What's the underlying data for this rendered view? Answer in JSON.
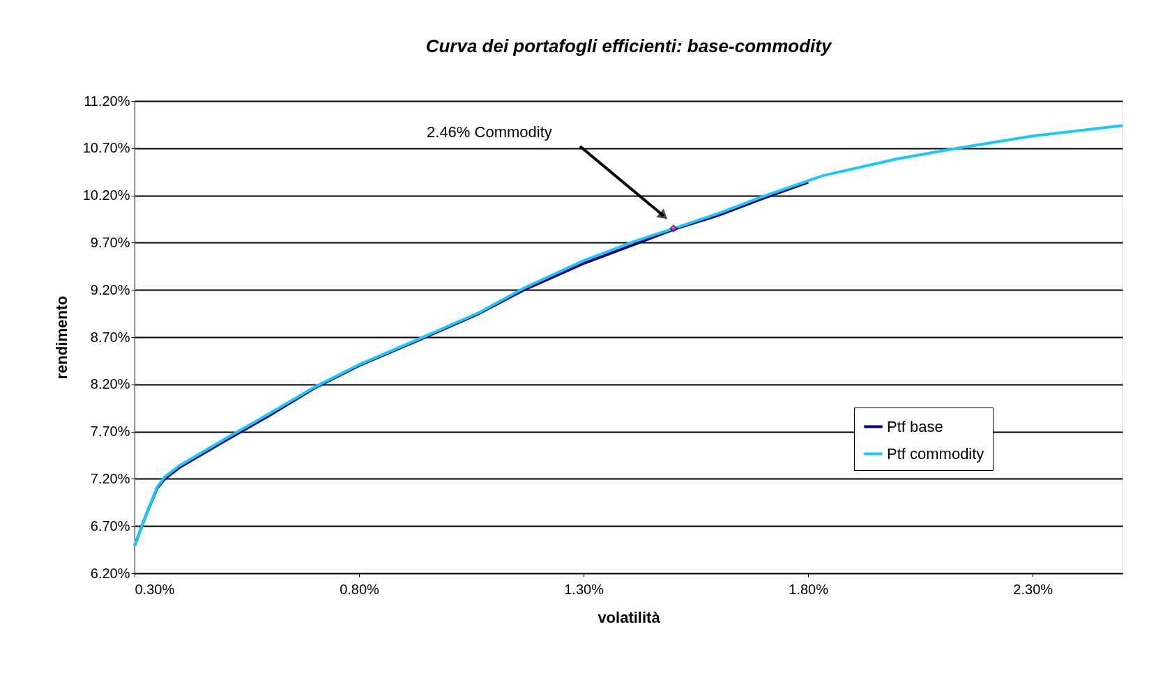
{
  "chart_data": {
    "type": "line",
    "title": "Curva dei portafogli efficienti: base-commodity",
    "xlabel": "volatilità",
    "ylabel": "rendimento",
    "xlim": [
      0.3,
      2.5
    ],
    "ylim": [
      6.2,
      11.2
    ],
    "xticks": [
      {
        "value": 0.3,
        "label": "0.30%"
      },
      {
        "value": 0.8,
        "label": "0.80%"
      },
      {
        "value": 1.3,
        "label": "1.30%"
      },
      {
        "value": 1.8,
        "label": "1.80%"
      },
      {
        "value": 2.3,
        "label": "2.30%"
      }
    ],
    "yticks": [
      {
        "value": 6.2,
        "label": "6.20%"
      },
      {
        "value": 6.7,
        "label": "6.70%"
      },
      {
        "value": 7.2,
        "label": "7.20%"
      },
      {
        "value": 7.7,
        "label": "7.70%"
      },
      {
        "value": 8.2,
        "label": "8.20%"
      },
      {
        "value": 8.7,
        "label": "8.70%"
      },
      {
        "value": 9.2,
        "label": "9.20%"
      },
      {
        "value": 9.7,
        "label": "9.70%"
      },
      {
        "value": 10.2,
        "label": "10.20%"
      },
      {
        "value": 10.7,
        "label": "10.70%"
      },
      {
        "value": 11.2,
        "label": "11.20%"
      }
    ],
    "grid": "y",
    "legend": "bottom right",
    "line_style": "solid",
    "series": [
      {
        "name": "Ptf base",
        "color": "#000080",
        "x": [
          0.3,
          0.325,
          0.35,
          0.367,
          0.4,
          0.5,
          0.6,
          0.7,
          0.8,
          0.933,
          1.067,
          1.167,
          1.3,
          1.417,
          1.5,
          1.6,
          1.7,
          1.8
        ],
        "values": [
          6.49,
          6.81,
          7.1,
          7.2,
          7.32,
          7.6,
          7.87,
          8.16,
          8.4,
          8.67,
          8.95,
          9.2,
          9.48,
          9.69,
          9.84,
          9.99,
          10.17,
          10.34
        ]
      },
      {
        "name": "Ptf commodity",
        "color": "#1ec8f5",
        "x": [
          0.3,
          0.325,
          0.35,
          0.367,
          0.4,
          0.5,
          0.6,
          0.7,
          0.8,
          0.933,
          1.067,
          1.167,
          1.3,
          1.417,
          1.5,
          1.6,
          1.7,
          1.833,
          2.0,
          2.133,
          2.3,
          2.5
        ],
        "values": [
          6.49,
          6.81,
          7.11,
          7.22,
          7.34,
          7.62,
          7.89,
          8.17,
          8.41,
          8.68,
          8.96,
          9.22,
          9.51,
          9.72,
          9.85,
          10.01,
          10.19,
          10.41,
          10.59,
          10.7,
          10.83,
          10.94
        ]
      },
      {
        "type": "scatter",
        "marker": "diamond",
        "color": "#ff00ff",
        "x": [
          1.5
        ],
        "values": [
          9.85
        ]
      }
    ],
    "annotations": [
      "2.46% Commodity"
    ]
  }
}
